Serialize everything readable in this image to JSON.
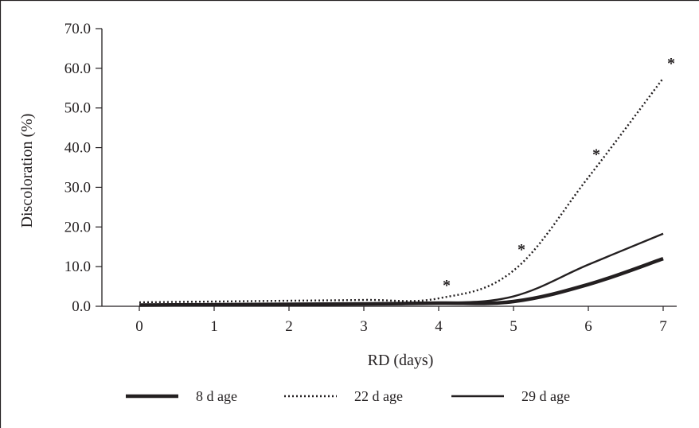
{
  "chart_data": {
    "type": "line",
    "title": "",
    "xlabel": "RD (days)",
    "ylabel": "Discoloration (%)",
    "x": [
      0,
      1,
      2,
      3,
      4,
      5,
      6,
      7
    ],
    "x_tick_labels": [
      "0",
      "1",
      "2",
      "3",
      "4",
      "5",
      "6",
      "7"
    ],
    "ylim": [
      0,
      70
    ],
    "y_ticks": [
      0,
      10,
      20,
      30,
      40,
      50,
      60,
      70
    ],
    "y_tick_labels": [
      "0.0",
      "10.0",
      "20.0",
      "30.0",
      "40.0",
      "50.0",
      "60.0",
      "70.0"
    ],
    "grid": false,
    "legend_position": "bottom",
    "series": [
      {
        "name": "8 d age",
        "style": "solid-thick",
        "color": "#231f20",
        "values": [
          0.3,
          0.4,
          0.5,
          0.6,
          0.8,
          1.2,
          5.5,
          12.0
        ]
      },
      {
        "name": "22 d age",
        "style": "dotted",
        "color": "#231f20",
        "values": [
          1.0,
          1.2,
          1.4,
          1.6,
          2.0,
          9.0,
          32.5,
          57.5
        ]
      },
      {
        "name": "29 d age",
        "style": "dashed",
        "color": "#231f20",
        "values": [
          0.2,
          0.3,
          0.4,
          0.6,
          0.8,
          2.5,
          10.5,
          18.3
        ]
      }
    ],
    "annotations": [
      {
        "text": "*",
        "x": 4,
        "y": 6.0
      },
      {
        "text": "*",
        "x": 5,
        "y": 15.0
      },
      {
        "text": "*",
        "x": 6,
        "y": 39.0
      },
      {
        "text": "*",
        "x": 7,
        "y": 62.0
      }
    ]
  }
}
